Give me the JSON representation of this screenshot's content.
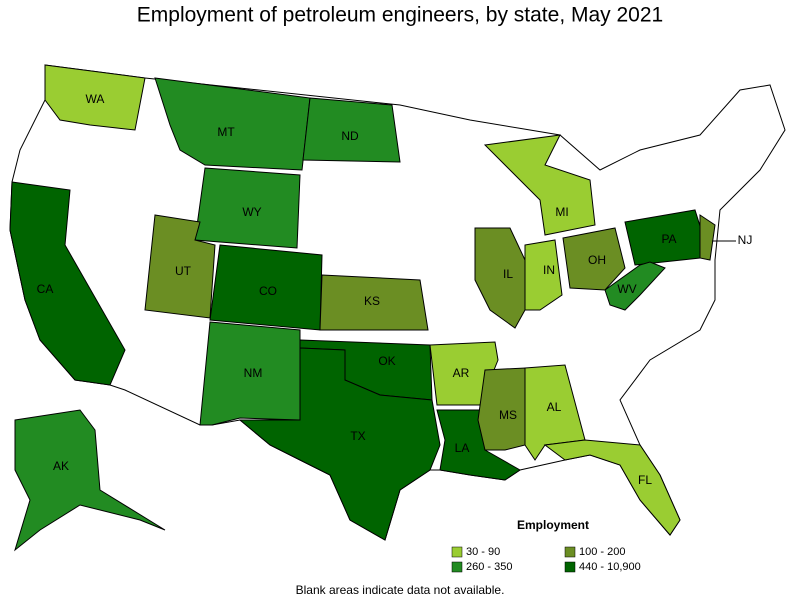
{
  "title": "Employment of petroleum engineers, by state, May 2021",
  "states": [
    {
      "label": "WA",
      "color": "#9acd32"
    },
    {
      "label": "MT",
      "color": "#228b22"
    },
    {
      "label": "ND",
      "color": "#228b22"
    },
    {
      "label": "WY",
      "color": "#228b22"
    },
    {
      "label": "UT",
      "color": "#6b8e23"
    },
    {
      "label": "CO",
      "color": "#006400"
    },
    {
      "label": "KS",
      "color": "#6b8e23"
    },
    {
      "label": "NM",
      "color": "#228b22"
    },
    {
      "label": "OK",
      "color": "#006400"
    },
    {
      "label": "TX",
      "color": "#006400"
    },
    {
      "label": "CA",
      "color": "#006400"
    },
    {
      "label": "AR",
      "color": "#9acd32"
    },
    {
      "label": "LA",
      "color": "#006400"
    },
    {
      "label": "MS",
      "color": "#6b8e23"
    },
    {
      "label": "AL",
      "color": "#9acd32"
    },
    {
      "label": "FL",
      "color": "#9acd32"
    },
    {
      "label": "IL",
      "color": "#6b8e23"
    },
    {
      "label": "IN",
      "color": "#9acd32"
    },
    {
      "label": "OH",
      "color": "#6b8e23"
    },
    {
      "label": "MI",
      "color": "#9acd32"
    },
    {
      "label": "PA",
      "color": "#006400"
    },
    {
      "label": "WV",
      "color": "#228b22"
    },
    {
      "label": "NJ",
      "color": "#6b8e23"
    },
    {
      "label": "AK",
      "color": "#228b22"
    }
  ],
  "legend": {
    "title": "Employment",
    "items": [
      {
        "label": "30 - 90",
        "color": "#9acd32"
      },
      {
        "label": "100 - 200",
        "color": "#6b8e23"
      },
      {
        "label": "260 - 350",
        "color": "#228b22"
      },
      {
        "label": "440 - 10,900",
        "color": "#006400"
      }
    ]
  },
  "note": "Blank areas indicate data not available."
}
